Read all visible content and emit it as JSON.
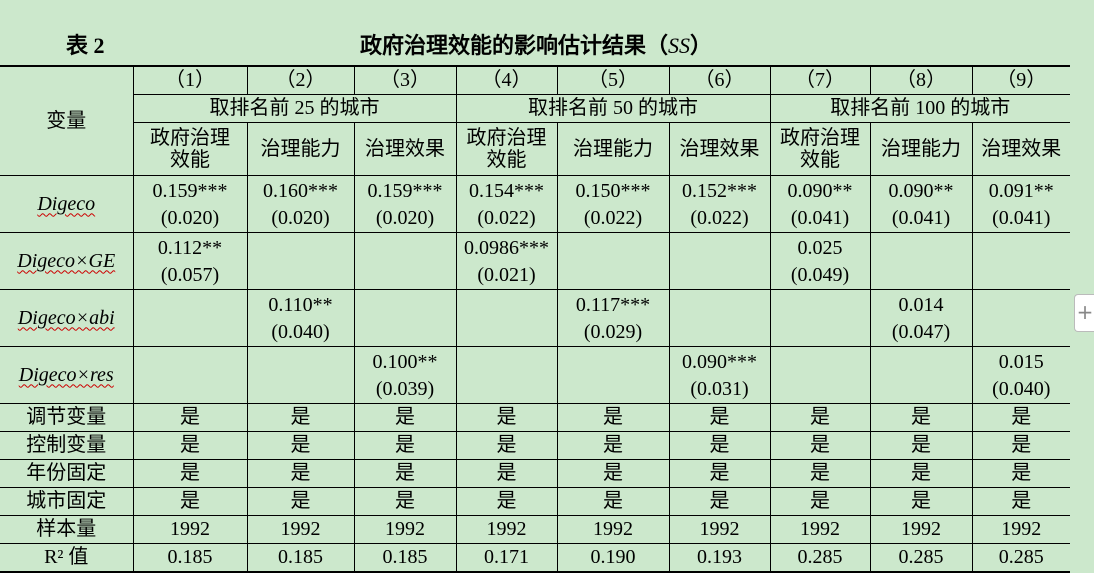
{
  "title_number": "表 2",
  "title": {
    "text": "政府治理效能的影响估计结果（",
    "em": "SS",
    "close": "）"
  },
  "table": {
    "corner": "变量",
    "column_numbers": [
      "（1）",
      "（2）",
      "（3）",
      "（4）",
      "（5）",
      "（6）",
      "（7）",
      "（8）",
      "（9）"
    ],
    "groups": [
      "取排名前 25 的城市",
      "取排名前 50 的城市",
      "取排名前 100 的城市"
    ],
    "subheaders": [
      "政府治理效能",
      "治理能力",
      "治理效果",
      "政府治理效能",
      "治理能力",
      "治理效果",
      "政府治理效能",
      "治理能力",
      "治理效果"
    ],
    "coef_rows": [
      {
        "label": "Digeco",
        "coef": [
          "0.159***",
          "0.160***",
          "0.159***",
          "0.154***",
          "0.150***",
          "0.152***",
          "0.090**",
          "0.090**",
          "0.091**"
        ],
        "se": [
          "(0.020)",
          "(0.020)",
          "(0.020)",
          "(0.022)",
          "(0.022)",
          "(0.022)",
          "(0.041)",
          "(0.041)",
          "(0.041)"
        ]
      },
      {
        "label": "Digeco×GE",
        "coef": [
          "0.112**",
          null,
          null,
          "0.0986***",
          null,
          null,
          "0.025",
          null,
          null
        ],
        "se": [
          "(0.057)",
          null,
          null,
          "(0.021)",
          null,
          null,
          "(0.049)",
          null,
          null
        ]
      },
      {
        "label": "Digeco×abi",
        "coef": [
          null,
          "0.110**",
          null,
          null,
          "0.117***",
          null,
          null,
          "0.014",
          null
        ],
        "se": [
          null,
          "(0.040)",
          null,
          null,
          "(0.029)",
          null,
          null,
          "(0.047)",
          null
        ]
      },
      {
        "label": "Digeco×res",
        "coef": [
          null,
          null,
          "0.100**",
          null,
          null,
          "0.090***",
          null,
          null,
          "0.015"
        ],
        "se": [
          null,
          null,
          "(0.039)",
          null,
          null,
          "(0.031)",
          null,
          null,
          "(0.040)"
        ]
      }
    ],
    "rows": [
      {
        "label": "调节变量",
        "cells": [
          "是",
          "是",
          "是",
          "是",
          "是",
          "是",
          "是",
          "是",
          "是"
        ]
      },
      {
        "label": "控制变量",
        "cells": [
          "是",
          "是",
          "是",
          "是",
          "是",
          "是",
          "是",
          "是",
          "是"
        ]
      },
      {
        "label": "年份固定",
        "cells": [
          "是",
          "是",
          "是",
          "是",
          "是",
          "是",
          "是",
          "是",
          "是"
        ]
      },
      {
        "label": "城市固定",
        "cells": [
          "是",
          "是",
          "是",
          "是",
          "是",
          "是",
          "是",
          "是",
          "是"
        ]
      },
      {
        "label": "样本量",
        "cells": [
          "1992",
          "1992",
          "1992",
          "1992",
          "1992",
          "1992",
          "1992",
          "1992",
          "1992"
        ]
      },
      {
        "label": "R² 值",
        "cells": [
          "0.185",
          "0.185",
          "0.185",
          "0.171",
          "0.190",
          "0.193",
          "0.285",
          "0.285",
          "0.285"
        ]
      }
    ]
  }
}
